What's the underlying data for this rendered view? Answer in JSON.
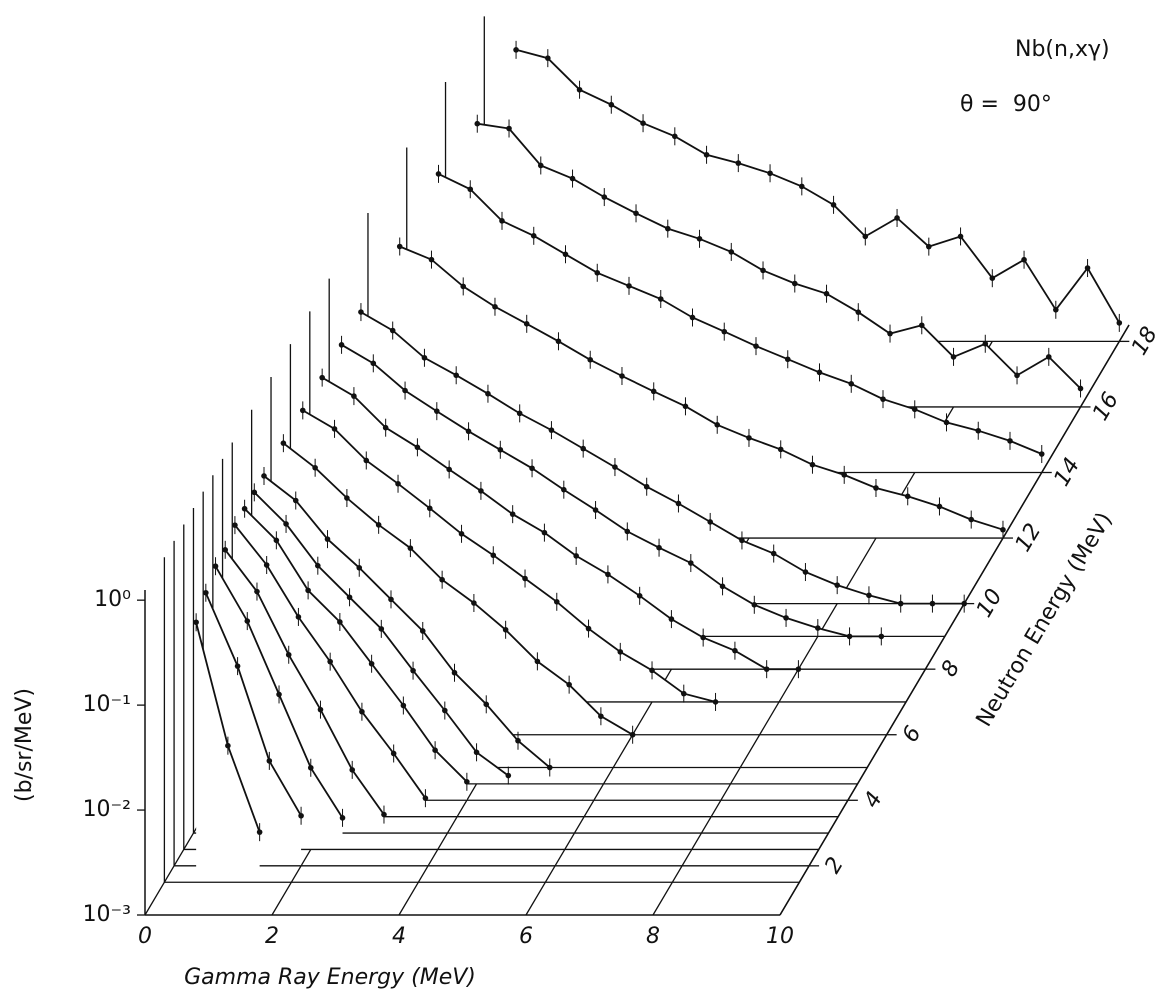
{
  "chart_data": {
    "type": "waterfall",
    "annotations": [
      "Nb(n,xγ)",
      "θ =  90°"
    ],
    "x_label": "Gamma Ray Energy (MeV)",
    "y_label": "(b/sr/MeV)",
    "z_label": "Neutron Energy (MeV)",
    "x": [
      0.5,
      1,
      1.5,
      2,
      2.5,
      3,
      3.5,
      4,
      4.5,
      5,
      5.5,
      6,
      6.5,
      7,
      7.5,
      8,
      8.5,
      9,
      9.5,
      10
    ],
    "xlim": [
      0,
      10
    ],
    "xticks": [
      0,
      2,
      4,
      6,
      8,
      10
    ],
    "ylim": [
      0.001,
      1.25
    ],
    "yscale": "log",
    "yticks": [
      {
        "value": 1,
        "label": "10⁰"
      },
      {
        "value": 0.1,
        "label": "10⁻¹"
      },
      {
        "value": 0.01,
        "label": "10⁻²"
      },
      {
        "value": 0.001,
        "label": "10⁻³"
      }
    ],
    "zlim": [
      0.5,
      18.5
    ],
    "zticks": [
      2,
      4,
      6,
      8,
      10,
      12,
      14,
      16,
      18
    ],
    "color": "#111111",
    "series": [
      {
        "z": 1.5,
        "values": [
          0.3,
          0.02,
          0.003,
          null,
          null,
          null,
          null,
          null,
          null,
          null,
          null,
          null,
          null,
          null,
          null,
          null,
          null,
          null,
          null,
          null
        ]
      },
      {
        "z": 2,
        "values": [
          0.4,
          0.08,
          0.01,
          0.003,
          null,
          null,
          null,
          null,
          null,
          null,
          null,
          null,
          null,
          null,
          null,
          null,
          null,
          null,
          null,
          null
        ]
      },
      {
        "z": 2.5,
        "values": [
          0.5,
          0.15,
          0.03,
          0.006,
          0.002,
          null,
          null,
          null,
          null,
          null,
          null,
          null,
          null,
          null,
          null,
          null,
          null,
          null,
          null,
          null
        ]
      },
      {
        "z": 3,
        "values": [
          0.5,
          0.2,
          0.05,
          0.015,
          0.004,
          0.0015,
          null,
          null,
          null,
          null,
          null,
          null,
          null,
          null,
          null,
          null,
          null,
          null,
          null,
          null
        ]
      },
      {
        "z": 3.5,
        "values": [
          0.6,
          0.25,
          0.08,
          0.03,
          0.01,
          0.004,
          0.0015,
          null,
          null,
          null,
          null,
          null,
          null,
          null,
          null,
          null,
          null,
          null,
          null,
          null
        ]
      },
      {
        "z": 4,
        "values": [
          0.6,
          0.3,
          0.1,
          0.05,
          0.02,
          0.008,
          0.003,
          0.0015,
          null,
          null,
          null,
          null,
          null,
          null,
          null,
          null,
          null,
          null,
          null,
          null
        ]
      },
      {
        "z": 4.5,
        "values": [
          0.6,
          0.3,
          0.12,
          0.06,
          0.03,
          0.012,
          0.005,
          0.002,
          0.0012,
          null,
          null,
          null,
          null,
          null,
          null,
          null,
          null,
          null,
          null,
          null
        ]
      },
      {
        "z": 5,
        "values": [
          0.6,
          0.35,
          0.15,
          0.08,
          0.04,
          0.02,
          0.008,
          0.004,
          0.0018,
          0.001,
          null,
          null,
          null,
          null,
          null,
          null,
          null,
          null,
          null,
          null
        ]
      },
      {
        "z": 6,
        "values": [
          0.6,
          0.35,
          0.18,
          0.1,
          0.06,
          0.03,
          0.018,
          0.01,
          0.005,
          0.003,
          0.0015,
          0.001,
          null,
          null,
          null,
          null,
          null,
          null,
          null,
          null
        ]
      },
      {
        "z": 7,
        "values": [
          0.6,
          0.4,
          0.2,
          0.12,
          0.07,
          0.04,
          0.025,
          0.015,
          0.009,
          0.005,
          0.003,
          0.002,
          0.0012,
          0.001,
          null,
          null,
          null,
          null,
          null,
          null
        ]
      },
      {
        "z": 8,
        "values": [
          0.6,
          0.4,
          0.2,
          0.13,
          0.08,
          0.05,
          0.03,
          0.02,
          0.012,
          0.008,
          0.005,
          0.003,
          0.002,
          0.0015,
          0.001,
          0.001,
          null,
          null,
          null,
          null
        ]
      },
      {
        "z": 9,
        "values": [
          0.6,
          0.4,
          0.22,
          0.14,
          0.09,
          0.06,
          0.04,
          0.025,
          0.016,
          0.01,
          0.007,
          0.005,
          0.003,
          0.002,
          0.0015,
          0.0012,
          0.001,
          0.001,
          null,
          null
        ]
      },
      {
        "z": 10,
        "values": [
          0.6,
          0.4,
          0.22,
          0.15,
          0.1,
          0.065,
          0.045,
          0.03,
          0.02,
          0.013,
          0.009,
          0.006,
          0.004,
          0.003,
          0.002,
          0.0015,
          0.0012,
          0.001,
          0.001,
          0.001
        ]
      },
      {
        "z": 12,
        "values": [
          0.6,
          0.45,
          0.25,
          0.16,
          0.11,
          0.075,
          0.05,
          0.035,
          0.025,
          0.018,
          0.012,
          0.009,
          0.007,
          0.005,
          0.004,
          0.003,
          0.0025,
          0.002,
          0.0015,
          0.0012
        ]
      },
      {
        "z": 14,
        "values": [
          0.7,
          0.5,
          0.25,
          0.18,
          0.12,
          0.08,
          0.06,
          0.045,
          0.03,
          0.022,
          0.016,
          0.012,
          0.009,
          0.007,
          0.005,
          0.004,
          0.003,
          0.0025,
          0.002,
          0.0015
        ]
      },
      {
        "z": 16,
        "values": [
          0.5,
          0.45,
          0.2,
          0.15,
          0.1,
          0.07,
          0.05,
          0.04,
          0.03,
          0.02,
          0.015,
          0.012,
          0.008,
          0.005,
          0.006,
          0.003,
          0.004,
          0.002,
          0.003,
          0.0015
        ]
      },
      {
        "z": 18,
        "values": [
          0.6,
          0.5,
          0.25,
          0.18,
          0.12,
          0.09,
          0.06,
          0.05,
          0.04,
          0.03,
          0.02,
          0.01,
          0.015,
          0.008,
          0.01,
          0.004,
          0.006,
          0.002,
          0.005,
          0.0015
        ]
      }
    ]
  }
}
